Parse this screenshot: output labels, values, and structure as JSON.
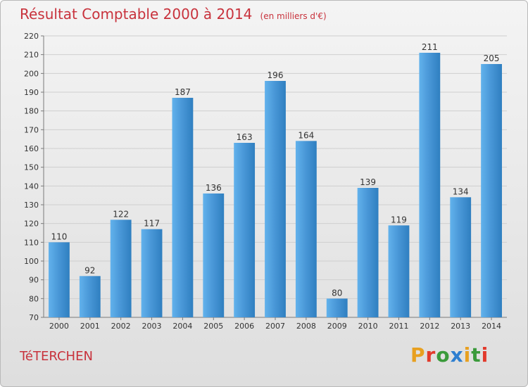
{
  "header": {
    "title": "Résultat Comptable 2000 à 2014",
    "unit": "(en milliers d'€)"
  },
  "commune": "TéTERCHEN",
  "logo": {
    "text": "Proxiti",
    "colors": [
      "#e8a020",
      "#e23a2c",
      "#3a9a3a",
      "#2e7fd0",
      "#e8a020",
      "#3a9a3a",
      "#e23a2c"
    ]
  },
  "colors": {
    "bar": "#4a98d8",
    "bar_light": "#62b2ec",
    "bar_dark": "#2f7fc0",
    "axis": "#7a7a7a",
    "grid": "#cfcfcf"
  },
  "chart_data": {
    "type": "bar",
    "title": "Résultat Comptable 2000 à 2014",
    "xlabel": "",
    "ylabel": "",
    "categories": [
      "2000",
      "2001",
      "2002",
      "2003",
      "2004",
      "2005",
      "2006",
      "2007",
      "2008",
      "2009",
      "2010",
      "2011",
      "2012",
      "2013",
      "2014"
    ],
    "values": [
      110,
      92,
      122,
      117,
      187,
      136,
      163,
      196,
      164,
      80,
      139,
      119,
      211,
      134,
      205
    ],
    "ylim": [
      70,
      220
    ],
    "yticks": [
      70,
      80,
      90,
      100,
      110,
      120,
      130,
      140,
      150,
      160,
      170,
      180,
      190,
      200,
      210,
      220
    ],
    "grid": true,
    "legend": "none"
  }
}
